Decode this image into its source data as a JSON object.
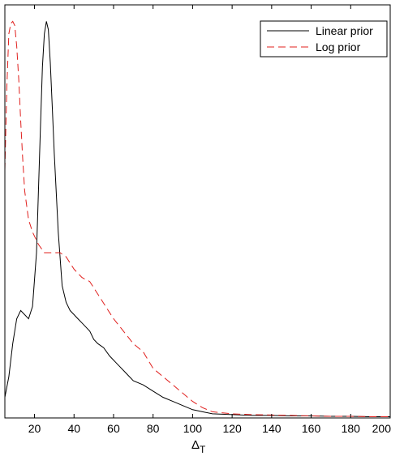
{
  "chart_data": {
    "type": "line",
    "title": "",
    "xlabel": "Δ",
    "xlabel_subscript": "T",
    "ylabel": "",
    "xlim": [
      5,
      200
    ],
    "ylim": [
      0,
      1
    ],
    "x_ticks": [
      20,
      40,
      60,
      80,
      100,
      120,
      140,
      160,
      180,
      200
    ],
    "x_tick_labels": [
      "20",
      "40",
      "60",
      "80",
      "100",
      "120",
      "140",
      "160",
      "180",
      "200"
    ],
    "y_ticks_shown": false,
    "grid": false,
    "legend_position": "top-right",
    "series": [
      {
        "name": "Linear prior",
        "color": "#000000",
        "style": "solid",
        "points": [
          [
            5,
            0.05
          ],
          [
            7,
            0.1
          ],
          [
            9,
            0.18
          ],
          [
            11,
            0.24
          ],
          [
            13,
            0.26
          ],
          [
            15,
            0.25
          ],
          [
            17,
            0.24
          ],
          [
            19,
            0.27
          ],
          [
            21,
            0.4
          ],
          [
            23,
            0.7
          ],
          [
            24,
            0.85
          ],
          [
            25,
            0.93
          ],
          [
            26,
            0.96
          ],
          [
            27,
            0.94
          ],
          [
            28,
            0.86
          ],
          [
            29,
            0.75
          ],
          [
            30,
            0.64
          ],
          [
            32,
            0.45
          ],
          [
            34,
            0.32
          ],
          [
            36,
            0.28
          ],
          [
            38,
            0.26
          ],
          [
            40,
            0.25
          ],
          [
            42,
            0.24
          ],
          [
            44,
            0.23
          ],
          [
            46,
            0.22
          ],
          [
            48,
            0.21
          ],
          [
            50,
            0.19
          ],
          [
            52,
            0.18
          ],
          [
            55,
            0.17
          ],
          [
            58,
            0.15
          ],
          [
            62,
            0.13
          ],
          [
            66,
            0.11
          ],
          [
            70,
            0.09
          ],
          [
            75,
            0.08
          ],
          [
            80,
            0.065
          ],
          [
            85,
            0.05
          ],
          [
            90,
            0.04
          ],
          [
            95,
            0.03
          ],
          [
            100,
            0.02
          ],
          [
            105,
            0.015
          ],
          [
            110,
            0.01
          ],
          [
            120,
            0.008
          ],
          [
            130,
            0.006
          ],
          [
            140,
            0.006
          ],
          [
            150,
            0.005
          ],
          [
            160,
            0.005
          ],
          [
            170,
            0.004
          ],
          [
            180,
            0.004
          ],
          [
            190,
            0.003
          ],
          [
            200,
            0.003
          ]
        ]
      },
      {
        "name": "Log prior",
        "color": "#e0201e",
        "style": "dashed",
        "points": [
          [
            5,
            0.6
          ],
          [
            6,
            0.8
          ],
          [
            7,
            0.93
          ],
          [
            8,
            0.955
          ],
          [
            9,
            0.96
          ],
          [
            10,
            0.95
          ],
          [
            11,
            0.9
          ],
          [
            12,
            0.82
          ],
          [
            13,
            0.72
          ],
          [
            14,
            0.63
          ],
          [
            15,
            0.55
          ],
          [
            17,
            0.48
          ],
          [
            19,
            0.45
          ],
          [
            22,
            0.42
          ],
          [
            25,
            0.4
          ],
          [
            30,
            0.4
          ],
          [
            33,
            0.4
          ],
          [
            36,
            0.39
          ],
          [
            40,
            0.36
          ],
          [
            44,
            0.34
          ],
          [
            48,
            0.33
          ],
          [
            52,
            0.3
          ],
          [
            56,
            0.27
          ],
          [
            60,
            0.24
          ],
          [
            65,
            0.21
          ],
          [
            70,
            0.18
          ],
          [
            75,
            0.16
          ],
          [
            80,
            0.12
          ],
          [
            85,
            0.1
          ],
          [
            90,
            0.08
          ],
          [
            95,
            0.06
          ],
          [
            100,
            0.04
          ],
          [
            105,
            0.025
          ],
          [
            110,
            0.015
          ],
          [
            120,
            0.01
          ],
          [
            130,
            0.008
          ],
          [
            140,
            0.007
          ],
          [
            150,
            0.006
          ],
          [
            160,
            0.005
          ],
          [
            170,
            0.004
          ],
          [
            180,
            0.004
          ],
          [
            190,
            0.003
          ],
          [
            200,
            0.003
          ]
        ]
      }
    ]
  }
}
